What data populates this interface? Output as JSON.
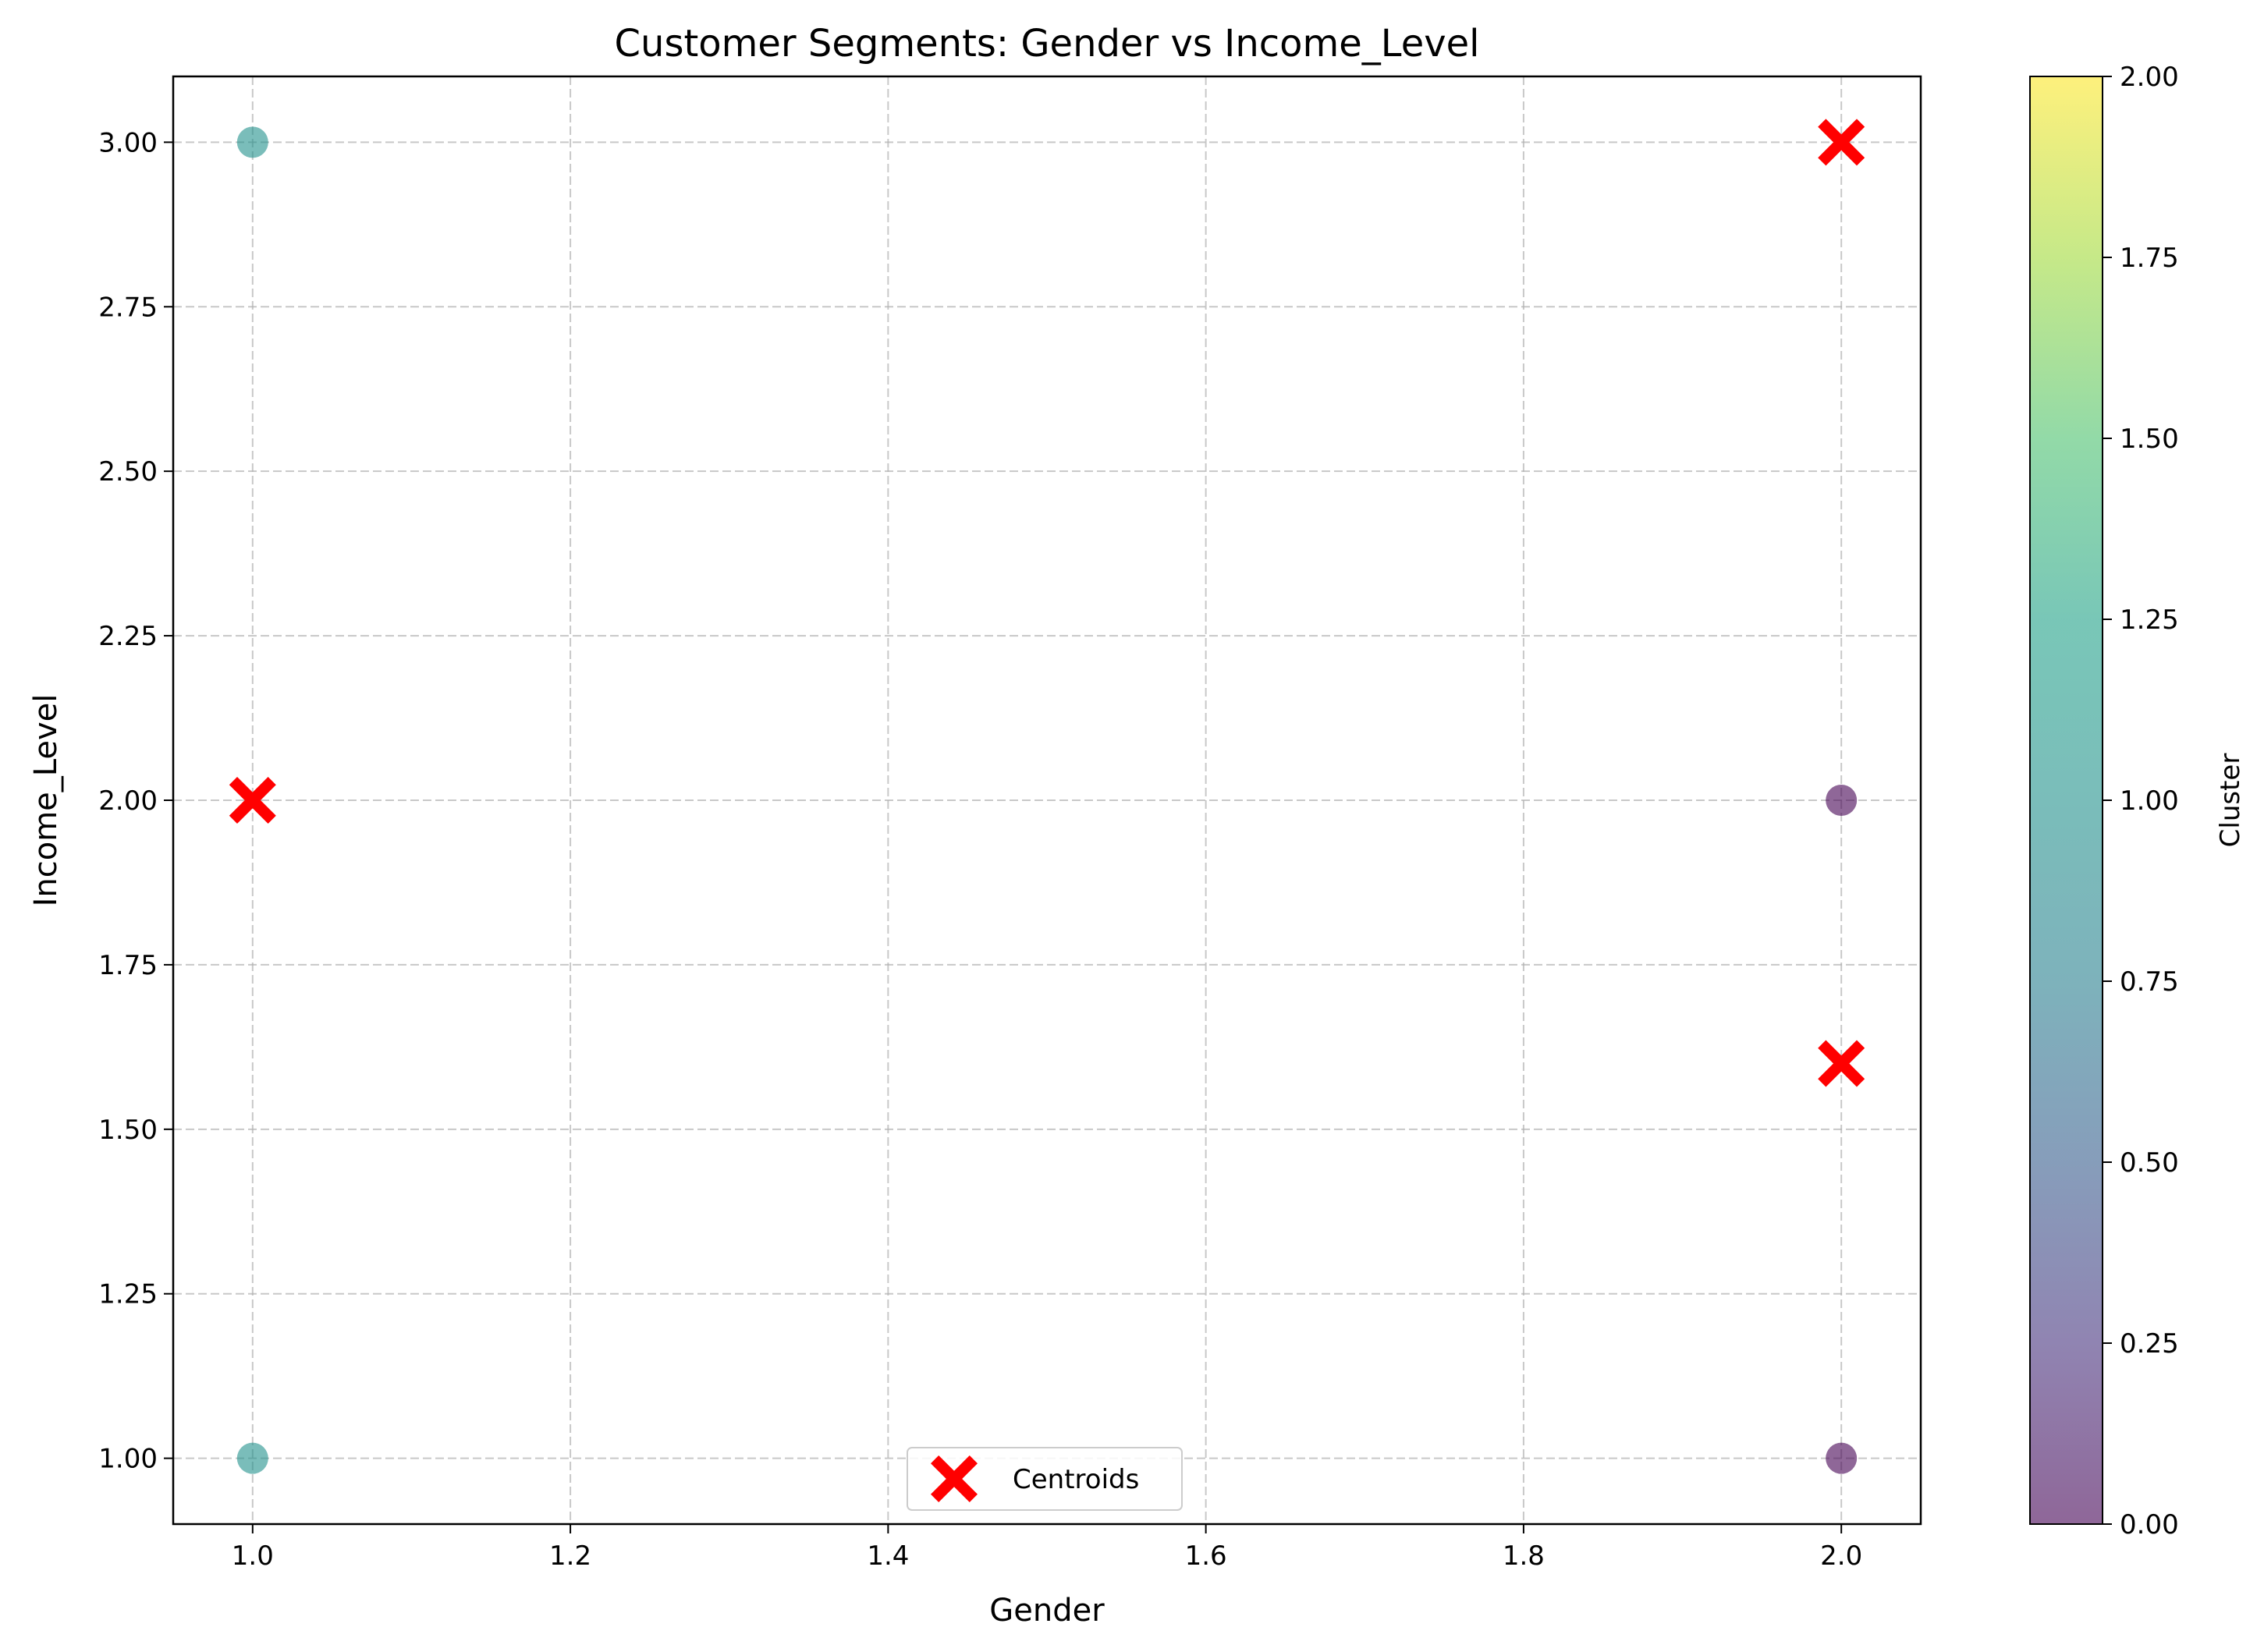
{
  "chart_data": {
    "type": "scatter",
    "title": "Customer Segments: Gender vs Income_Level",
    "xlabel": "Gender",
    "ylabel": "Income_Level",
    "xlim": [
      0.95,
      2.05
    ],
    "ylim": [
      0.9,
      3.1
    ],
    "x_ticks": [
      "1.0",
      "1.2",
      "1.4",
      "1.6",
      "1.8",
      "2.0"
    ],
    "y_ticks": [
      "1.00",
      "1.25",
      "1.50",
      "1.75",
      "2.00",
      "2.25",
      "2.50",
      "2.75",
      "3.00"
    ],
    "grid": true,
    "colormap": "viridis",
    "point_alpha": 0.6,
    "points": [
      {
        "x": 1.0,
        "y": 3.0,
        "cluster": 1
      },
      {
        "x": 1.0,
        "y": 1.0,
        "cluster": 1
      },
      {
        "x": 2.0,
        "y": 2.0,
        "cluster": 0
      },
      {
        "x": 2.0,
        "y": 1.0,
        "cluster": 0
      }
    ],
    "centroids": {
      "name": "Centroids",
      "color": "#ff0000",
      "marker": "X",
      "points": [
        {
          "x": 2.0,
          "y": 3.0
        },
        {
          "x": 1.0,
          "y": 2.0
        },
        {
          "x": 2.0,
          "y": 1.6
        }
      ]
    },
    "legend": {
      "placement": "lower center",
      "entries": [
        "Centroids"
      ]
    },
    "colorbar": {
      "label": "Cluster",
      "range": [
        0.0,
        2.0
      ],
      "ticks": [
        "0.00",
        "0.25",
        "0.50",
        "0.75",
        "1.00",
        "1.25",
        "1.50",
        "1.75",
        "2.00"
      ]
    }
  }
}
